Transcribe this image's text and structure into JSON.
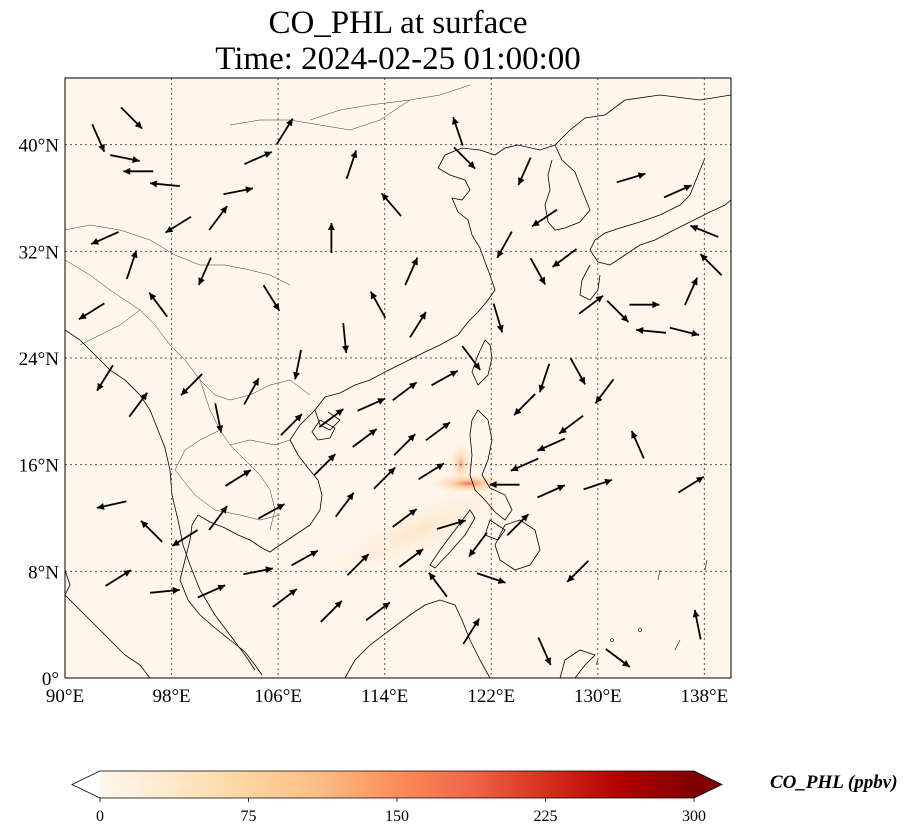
{
  "title": {
    "line1": "CO_PHL at surface",
    "line2": "Time: 2024-02-25 01:00:00"
  },
  "map": {
    "lon_range": [
      90,
      140
    ],
    "lat_range": [
      0,
      45
    ],
    "lon_ticks": [
      {
        "value": 90,
        "label": "90°E"
      },
      {
        "value": 98,
        "label": "98°E"
      },
      {
        "value": 106,
        "label": "106°E"
      },
      {
        "value": 114,
        "label": "114°E"
      },
      {
        "value": 122,
        "label": "122°E"
      },
      {
        "value": 130,
        "label": "130°E"
      },
      {
        "value": 138,
        "label": "138°E"
      }
    ],
    "lat_ticks": [
      {
        "value": 0,
        "label": "0°"
      },
      {
        "value": 8,
        "label": "8°N"
      },
      {
        "value": 16,
        "label": "16°N"
      },
      {
        "value": 24,
        "label": "24°N"
      },
      {
        "value": 32,
        "label": "32°N"
      },
      {
        "value": 40,
        "label": "40°N"
      }
    ],
    "gridlines": true,
    "background_color": "#fff5ea",
    "coastline_color": "#000000",
    "plume": {
      "lon": 120.3,
      "lat": 14.6,
      "peak_ppbv": 200
    }
  },
  "wind_vectors": [
    {
      "lon": 92.5,
      "lat": 40.5,
      "u": 0.4,
      "v": -0.9
    },
    {
      "lon": 94.5,
      "lat": 39.0,
      "u": 1.0,
      "v": -0.2
    },
    {
      "lon": 95.0,
      "lat": 42.0,
      "u": 0.7,
      "v": -0.7
    },
    {
      "lon": 95.5,
      "lat": 38.0,
      "u": -1.0,
      "v": 0.0
    },
    {
      "lon": 97.5,
      "lat": 37.0,
      "u": -1.0,
      "v": 0.1
    },
    {
      "lon": 98.5,
      "lat": 34.0,
      "u": -0.8,
      "v": -0.5
    },
    {
      "lon": 101.5,
      "lat": 34.5,
      "u": 0.6,
      "v": 0.8
    },
    {
      "lon": 103.0,
      "lat": 36.5,
      "u": 1.0,
      "v": 0.2
    },
    {
      "lon": 104.5,
      "lat": 39.0,
      "u": 0.9,
      "v": 0.4
    },
    {
      "lon": 106.5,
      "lat": 41.0,
      "u": 0.5,
      "v": 0.8
    },
    {
      "lon": 93.0,
      "lat": 33.0,
      "u": -0.9,
      "v": -0.4
    },
    {
      "lon": 95.0,
      "lat": 31.0,
      "u": 0.3,
      "v": 0.9
    },
    {
      "lon": 97.0,
      "lat": 28.0,
      "u": -0.6,
      "v": 0.8
    },
    {
      "lon": 92.0,
      "lat": 27.5,
      "u": -0.8,
      "v": -0.5
    },
    {
      "lon": 100.5,
      "lat": 30.5,
      "u": -0.4,
      "v": -0.9
    },
    {
      "lon": 105.5,
      "lat": 28.5,
      "u": 0.5,
      "v": -0.8
    },
    {
      "lon": 110.0,
      "lat": 33.0,
      "u": 0.0,
      "v": 1.0
    },
    {
      "lon": 111.5,
      "lat": 38.5,
      "u": 0.3,
      "v": 0.9
    },
    {
      "lon": 114.5,
      "lat": 35.5,
      "u": -0.6,
      "v": 0.7
    },
    {
      "lon": 116.0,
      "lat": 30.5,
      "u": 0.4,
      "v": 0.9
    },
    {
      "lon": 119.5,
      "lat": 41.0,
      "u": -0.3,
      "v": 0.9
    },
    {
      "lon": 120.0,
      "lat": 39.0,
      "u": 0.7,
      "v": -0.7
    },
    {
      "lon": 124.5,
      "lat": 38.0,
      "u": -0.4,
      "v": -0.9
    },
    {
      "lon": 126.0,
      "lat": 34.5,
      "u": -0.9,
      "v": -0.6
    },
    {
      "lon": 123.0,
      "lat": 32.5,
      "u": -0.5,
      "v": -0.9
    },
    {
      "lon": 125.5,
      "lat": 30.5,
      "u": 0.5,
      "v": -0.9
    },
    {
      "lon": 127.5,
      "lat": 31.5,
      "u": -0.8,
      "v": -0.6
    },
    {
      "lon": 129.5,
      "lat": 28.0,
      "u": 0.8,
      "v": 0.6
    },
    {
      "lon": 131.5,
      "lat": 27.5,
      "u": 0.7,
      "v": -0.7
    },
    {
      "lon": 133.5,
      "lat": 28.0,
      "u": 1.0,
      "v": 0.0
    },
    {
      "lon": 134.0,
      "lat": 26.0,
      "u": -1.0,
      "v": 0.1
    },
    {
      "lon": 136.5,
      "lat": 26.0,
      "u": 0.8,
      "v": -0.2
    },
    {
      "lon": 137.0,
      "lat": 29.0,
      "u": 0.4,
      "v": 0.9
    },
    {
      "lon": 138.5,
      "lat": 31.0,
      "u": -0.7,
      "v": 0.7
    },
    {
      "lon": 138.0,
      "lat": 33.5,
      "u": -1.0,
      "v": 0.4
    },
    {
      "lon": 136.0,
      "lat": 36.5,
      "u": 0.9,
      "v": 0.4
    },
    {
      "lon": 132.5,
      "lat": 37.5,
      "u": 1.0,
      "v": 0.3
    },
    {
      "lon": 122.5,
      "lat": 27.0,
      "u": 0.3,
      "v": -1.0
    },
    {
      "lon": 120.5,
      "lat": 24.0,
      "u": 0.6,
      "v": -0.8
    },
    {
      "lon": 118.5,
      "lat": 22.5,
      "u": 0.9,
      "v": 0.5
    },
    {
      "lon": 115.5,
      "lat": 21.5,
      "u": 0.8,
      "v": 0.6
    },
    {
      "lon": 113.0,
      "lat": 20.5,
      "u": 0.9,
      "v": 0.4
    },
    {
      "lon": 110.0,
      "lat": 19.5,
      "u": 0.8,
      "v": 0.6
    },
    {
      "lon": 107.0,
      "lat": 19.0,
      "u": 0.7,
      "v": 0.7
    },
    {
      "lon": 112.5,
      "lat": 18.0,
      "u": 0.8,
      "v": 0.6
    },
    {
      "lon": 115.5,
      "lat": 17.5,
      "u": 0.7,
      "v": 0.7
    },
    {
      "lon": 118.0,
      "lat": 18.5,
      "u": 0.8,
      "v": 0.6
    },
    {
      "lon": 109.5,
      "lat": 16.0,
      "u": 0.7,
      "v": 0.7
    },
    {
      "lon": 114.0,
      "lat": 15.0,
      "u": 0.7,
      "v": 0.7
    },
    {
      "lon": 117.5,
      "lat": 15.5,
      "u": 0.8,
      "v": 0.5
    },
    {
      "lon": 111.0,
      "lat": 13.0,
      "u": 0.6,
      "v": 0.8
    },
    {
      "lon": 115.5,
      "lat": 12.0,
      "u": 0.8,
      "v": 0.6
    },
    {
      "lon": 119.0,
      "lat": 11.5,
      "u": 1.0,
      "v": 0.3
    },
    {
      "lon": 108.0,
      "lat": 9.0,
      "u": 0.9,
      "v": 0.5
    },
    {
      "lon": 112.0,
      "lat": 8.5,
      "u": 0.7,
      "v": 0.7
    },
    {
      "lon": 116.0,
      "lat": 9.0,
      "u": 0.8,
      "v": 0.6
    },
    {
      "lon": 104.5,
      "lat": 8.0,
      "u": 1.0,
      "v": 0.2
    },
    {
      "lon": 101.0,
      "lat": 6.5,
      "u": 0.9,
      "v": 0.4
    },
    {
      "lon": 106.5,
      "lat": 6.0,
      "u": 0.8,
      "v": 0.6
    },
    {
      "lon": 110.0,
      "lat": 5.0,
      "u": 0.7,
      "v": 0.7
    },
    {
      "lon": 113.5,
      "lat": 5.0,
      "u": 0.8,
      "v": 0.6
    },
    {
      "lon": 97.5,
      "lat": 6.5,
      "u": 1.0,
      "v": 0.1
    },
    {
      "lon": 94.0,
      "lat": 7.5,
      "u": 0.8,
      "v": 0.5
    },
    {
      "lon": 99.0,
      "lat": 10.5,
      "u": -0.8,
      "v": -0.5
    },
    {
      "lon": 93.5,
      "lat": 13.0,
      "u": -0.9,
      "v": -0.2
    },
    {
      "lon": 96.5,
      "lat": 11.0,
      "u": -0.7,
      "v": 0.7
    },
    {
      "lon": 103.0,
      "lat": 15.0,
      "u": 0.8,
      "v": 0.5
    },
    {
      "lon": 105.5,
      "lat": 12.5,
      "u": 0.9,
      "v": 0.5
    },
    {
      "lon": 101.5,
      "lat": 12.0,
      "u": 0.6,
      "v": 0.8
    },
    {
      "lon": 123.0,
      "lat": 14.5,
      "u": -1.0,
      "v": 0.0
    },
    {
      "lon": 124.5,
      "lat": 16.0,
      "u": -0.9,
      "v": -0.4
    },
    {
      "lon": 126.5,
      "lat": 17.5,
      "u": -0.9,
      "v": -0.4
    },
    {
      "lon": 128.0,
      "lat": 19.0,
      "u": -0.8,
      "v": -0.6
    },
    {
      "lon": 124.5,
      "lat": 20.5,
      "u": -0.7,
      "v": -0.7
    },
    {
      "lon": 126.0,
      "lat": 22.5,
      "u": -0.3,
      "v": -0.9
    },
    {
      "lon": 128.5,
      "lat": 23.0,
      "u": 0.5,
      "v": -0.9
    },
    {
      "lon": 130.5,
      "lat": 21.5,
      "u": -0.6,
      "v": -0.8
    },
    {
      "lon": 133.0,
      "lat": 17.5,
      "u": -0.4,
      "v": 0.9
    },
    {
      "lon": 137.0,
      "lat": 14.5,
      "u": 0.8,
      "v": 0.5
    },
    {
      "lon": 124.0,
      "lat": 11.5,
      "u": 0.7,
      "v": 0.7
    },
    {
      "lon": 126.5,
      "lat": 14.0,
      "u": 0.9,
      "v": 0.4
    },
    {
      "lon": 130.0,
      "lat": 14.5,
      "u": 0.9,
      "v": 0.3
    },
    {
      "lon": 121.0,
      "lat": 10.0,
      "u": -0.6,
      "v": -0.8
    },
    {
      "lon": 118.0,
      "lat": 7.0,
      "u": -0.6,
      "v": 0.8
    },
    {
      "lon": 122.0,
      "lat": 7.5,
      "u": 0.9,
      "v": -0.3
    },
    {
      "lon": 128.5,
      "lat": 8.0,
      "u": -0.7,
      "v": -0.7
    },
    {
      "lon": 137.5,
      "lat": 4.0,
      "u": -0.2,
      "v": 1.0
    },
    {
      "lon": 120.5,
      "lat": 3.5,
      "u": 0.5,
      "v": 0.8
    },
    {
      "lon": 126.0,
      "lat": 2.0,
      "u": 0.4,
      "v": -0.9
    },
    {
      "lon": 131.5,
      "lat": 1.5,
      "u": 0.8,
      "v": -0.6
    },
    {
      "lon": 93.0,
      "lat": 22.5,
      "u": -0.5,
      "v": -0.8
    },
    {
      "lon": 95.5,
      "lat": 20.5,
      "u": 0.6,
      "v": 0.8
    },
    {
      "lon": 99.5,
      "lat": 22.0,
      "u": -0.7,
      "v": -0.7
    },
    {
      "lon": 101.5,
      "lat": 19.5,
      "u": 0.2,
      "v": -1.0
    },
    {
      "lon": 107.5,
      "lat": 23.5,
      "u": -0.2,
      "v": -1.0
    },
    {
      "lon": 111.0,
      "lat": 25.5,
      "u": 0.1,
      "v": -1.0
    },
    {
      "lon": 104.0,
      "lat": 21.5,
      "u": 0.5,
      "v": 0.9
    },
    {
      "lon": 113.5,
      "lat": 28.0,
      "u": -0.5,
      "v": 0.9
    },
    {
      "lon": 116.5,
      "lat": 26.5,
      "u": 0.5,
      "v": 0.8
    }
  ],
  "colorbar": {
    "label": "CO_PHL (ppbv)",
    "vmin": 0,
    "vmax": 300,
    "ticks": [
      {
        "value": 0,
        "label": "0"
      },
      {
        "value": 75,
        "label": "75"
      },
      {
        "value": 150,
        "label": "150"
      },
      {
        "value": 225,
        "label": "225"
      },
      {
        "value": 300,
        "label": "300"
      }
    ],
    "colormap": [
      "#fff7ec",
      "#fee8c8",
      "#fdd49e",
      "#fdbb84",
      "#fc8d59",
      "#ef6548",
      "#d7301f",
      "#b30000",
      "#7f0000"
    ],
    "under_color": "#ffffff",
    "over_color": "#7f0000"
  }
}
